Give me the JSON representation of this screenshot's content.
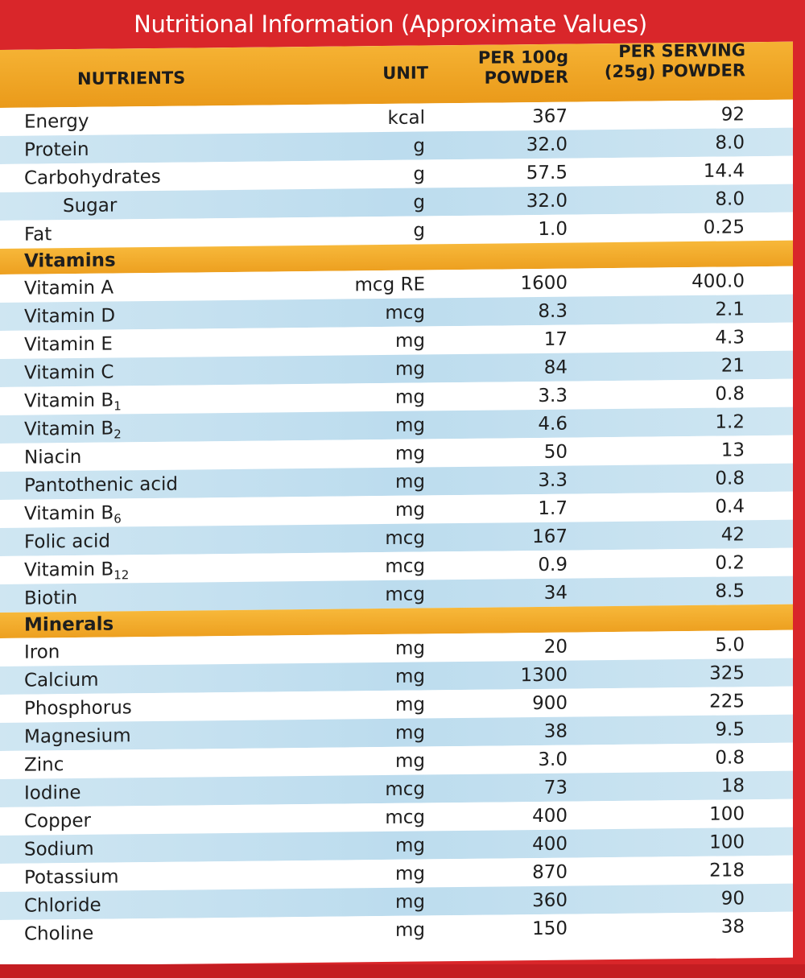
{
  "title": "Nutritional Information (Approximate Values)",
  "headers": {
    "nutrients": "NUTRIENTS",
    "unit": "UNIT",
    "per100_line1": "PER 100g",
    "per100_line2": "POWDER",
    "serving_line1": "PER SERVING",
    "serving_line2": "(25g) POWDER"
  },
  "rows": [
    {
      "type": "item",
      "name": "Energy",
      "unit": "kcal",
      "per100": "367",
      "serving": "92"
    },
    {
      "type": "item",
      "name": "Protein",
      "unit": "g",
      "per100": "32.0",
      "serving": "8.0"
    },
    {
      "type": "item",
      "name": "Carbohydrates",
      "unit": "g",
      "per100": "57.5",
      "serving": "14.4"
    },
    {
      "type": "item",
      "name": "Sugar",
      "indent": true,
      "unit": "g",
      "per100": "32.0",
      "serving": "8.0"
    },
    {
      "type": "item",
      "name": "Fat",
      "unit": "g",
      "per100": "1.0",
      "serving": "0.25"
    },
    {
      "type": "section",
      "name": "Vitamins"
    },
    {
      "type": "item",
      "name": "Vitamin A",
      "unit": "mcg RE",
      "per100": "1600",
      "serving": "400.0"
    },
    {
      "type": "item",
      "name": "Vitamin D",
      "unit": "mcg",
      "per100": "8.3",
      "serving": "2.1"
    },
    {
      "type": "item",
      "name": "Vitamin E",
      "unit": "mg",
      "per100": "17",
      "serving": "4.3"
    },
    {
      "type": "item",
      "name": "Vitamin C",
      "unit": "mg",
      "per100": "84",
      "serving": "21"
    },
    {
      "type": "item",
      "name": "Vitamin B",
      "sub": "1",
      "unit": "mg",
      "per100": "3.3",
      "serving": "0.8"
    },
    {
      "type": "item",
      "name": "Vitamin B",
      "sub": "2",
      "unit": "mg",
      "per100": "4.6",
      "serving": "1.2"
    },
    {
      "type": "item",
      "name": "Niacin",
      "unit": "mg",
      "per100": "50",
      "serving": "13"
    },
    {
      "type": "item",
      "name": "Pantothenic acid",
      "unit": "mg",
      "per100": "3.3",
      "serving": "0.8"
    },
    {
      "type": "item",
      "name": "Vitamin B",
      "sub": "6",
      "unit": "mg",
      "per100": "1.7",
      "serving": "0.4"
    },
    {
      "type": "item",
      "name": "Folic acid",
      "unit": "mcg",
      "per100": "167",
      "serving": "42"
    },
    {
      "type": "item",
      "name": "Vitamin B",
      "sub": "12",
      "unit": "mcg",
      "per100": "0.9",
      "serving": "0.2"
    },
    {
      "type": "item",
      "name": "Biotin",
      "unit": "mcg",
      "per100": "34",
      "serving": "8.5"
    },
    {
      "type": "section",
      "name": "Minerals"
    },
    {
      "type": "item",
      "name": "Iron",
      "unit": "mg",
      "per100": "20",
      "serving": "5.0"
    },
    {
      "type": "item",
      "name": "Calcium",
      "unit": "mg",
      "per100": "1300",
      "serving": "325"
    },
    {
      "type": "item",
      "name": "Phosphorus",
      "unit": "mg",
      "per100": "900",
      "serving": "225"
    },
    {
      "type": "item",
      "name": "Magnesium",
      "unit": "mg",
      "per100": "38",
      "serving": "9.5"
    },
    {
      "type": "item",
      "name": "Zinc",
      "unit": "mg",
      "per100": "3.0",
      "serving": "0.8"
    },
    {
      "type": "item",
      "name": "Iodine",
      "unit": "mcg",
      "per100": "73",
      "serving": "18"
    },
    {
      "type": "item",
      "name": "Copper",
      "unit": "mcg",
      "per100": "400",
      "serving": "100"
    },
    {
      "type": "item",
      "name": "Sodium",
      "unit": "mg",
      "per100": "400",
      "serving": "100"
    },
    {
      "type": "item",
      "name": "Potassium",
      "unit": "mg",
      "per100": "870",
      "serving": "218"
    },
    {
      "type": "item",
      "name": "Chloride",
      "unit": "mg",
      "per100": "360",
      "serving": "90"
    },
    {
      "type": "item",
      "name": "Choline",
      "unit": "mg",
      "per100": "150",
      "serving": "38"
    }
  ],
  "colors": {
    "background_red": "#d9262a",
    "header_orange": "#f5b233",
    "stripe_blue": "#c6e1f0"
  }
}
